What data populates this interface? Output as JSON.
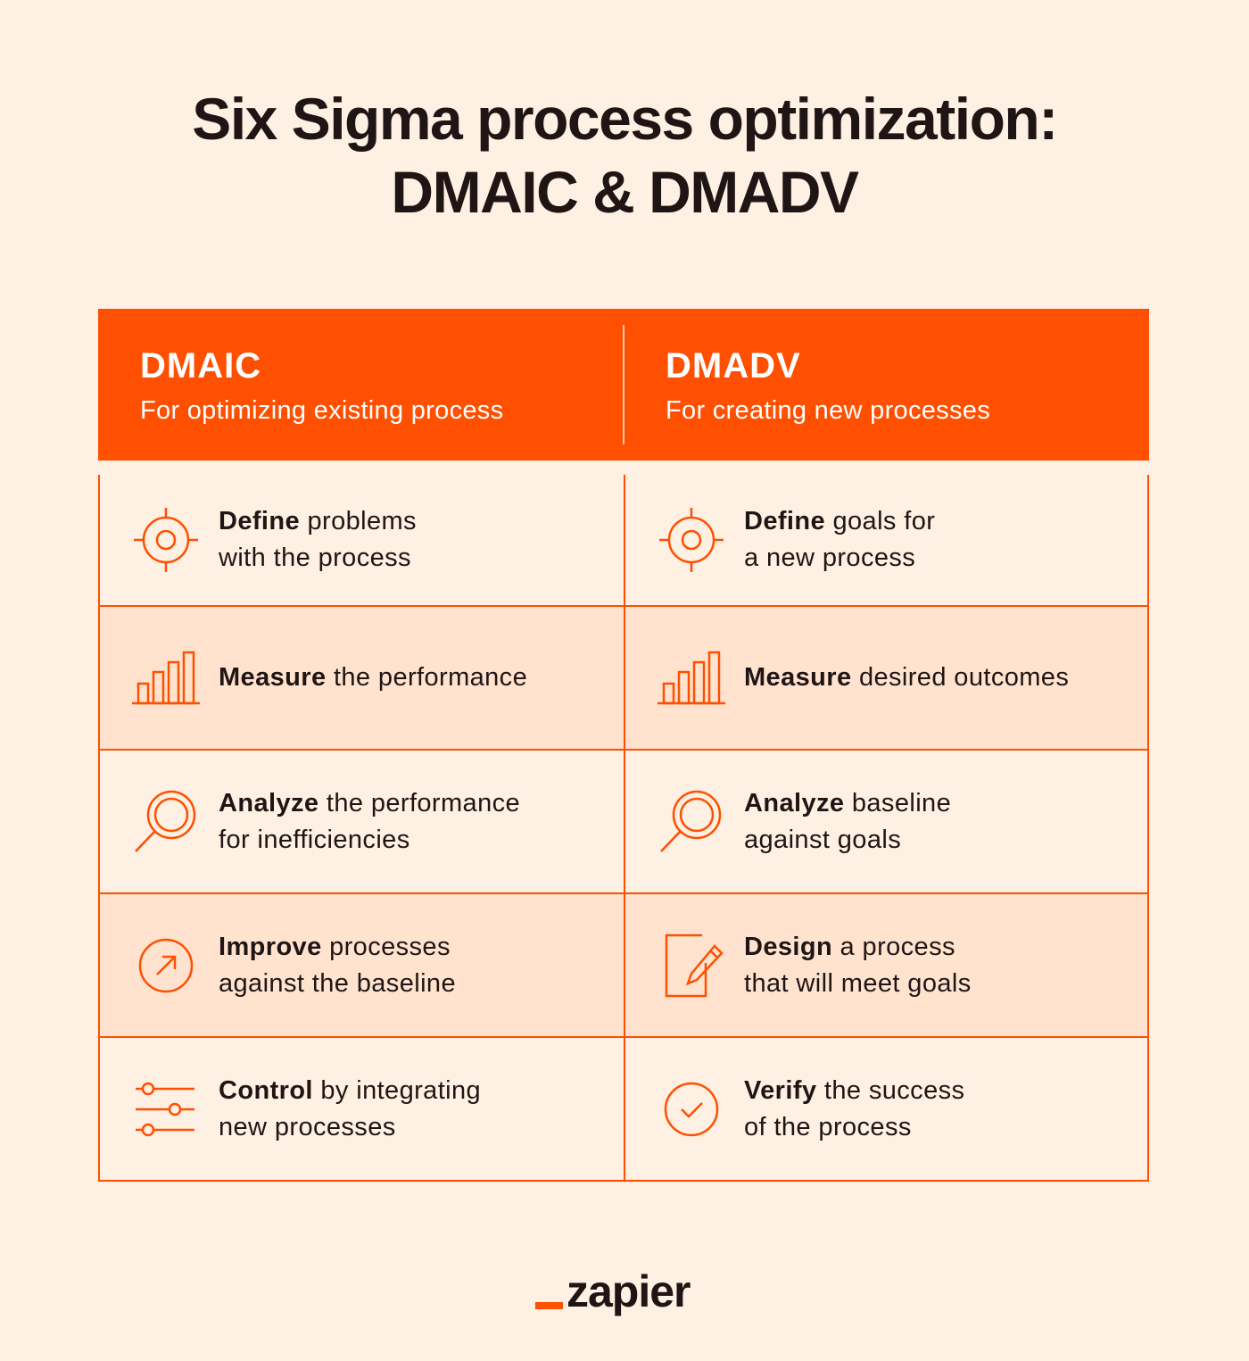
{
  "title": {
    "line1": "Six Sigma process optimization:",
    "line2": "DMAIC & DMADV"
  },
  "columns": [
    {
      "name": "DMAIC",
      "subtitle": "For optimizing existing process",
      "steps": [
        {
          "icon": "target-icon",
          "bold": "Define",
          "rest1": " problems",
          "line2": "with the process"
        },
        {
          "icon": "bar-chart-icon",
          "bold": "Measure",
          "rest1": " the performance",
          "line2": ""
        },
        {
          "icon": "magnifier-icon",
          "bold": "Analyze",
          "rest1": " the performance",
          "line2": "for inefficiencies"
        },
        {
          "icon": "arrow-circle-icon",
          "bold": "Improve",
          "rest1": " processes",
          "line2": "against the baseline"
        },
        {
          "icon": "sliders-icon",
          "bold": "Control",
          "rest1": " by integrating",
          "line2": "new processes"
        }
      ]
    },
    {
      "name": "DMADV",
      "subtitle": "For creating new processes",
      "steps": [
        {
          "icon": "target-icon",
          "bold": "Define",
          "rest1": " goals for",
          "line2": "a new process"
        },
        {
          "icon": "bar-chart-icon",
          "bold": "Measure",
          "rest1": " desired outcomes",
          "line2": ""
        },
        {
          "icon": "magnifier-icon",
          "bold": "Analyze",
          "rest1": " baseline",
          "line2": "against goals"
        },
        {
          "icon": "edit-document-icon",
          "bold": "Design",
          "rest1": " a process",
          "line2": "that will meet goals"
        },
        {
          "icon": "check-circle-icon",
          "bold": "Verify",
          "rest1": " the success",
          "line2": "of the process"
        }
      ]
    }
  ],
  "logo": {
    "text": "zapier"
  },
  "colors": {
    "accent": "#ff4f00",
    "background": "#fef0e2",
    "shaded_row": "#ffe3cf",
    "text": "#201515"
  }
}
